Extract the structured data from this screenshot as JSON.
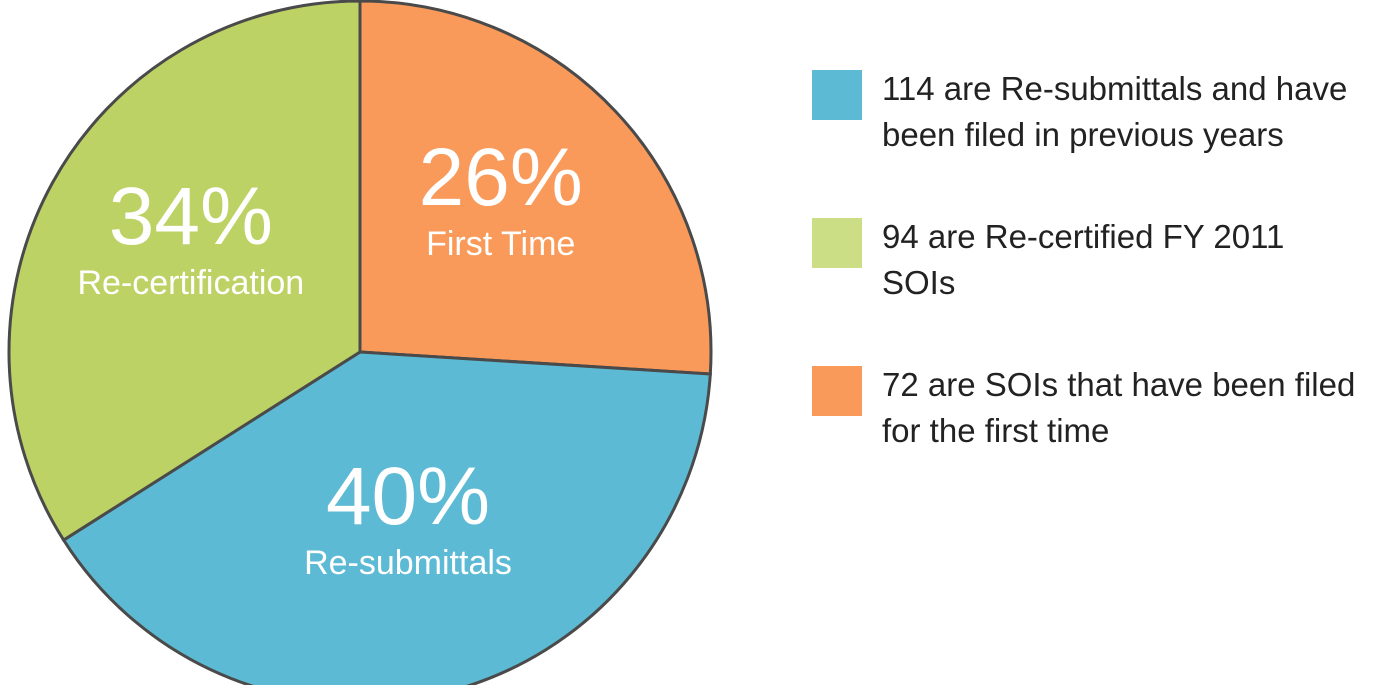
{
  "chart_data": {
    "type": "pie",
    "categories": [
      "First Time",
      "Re-submittals",
      "Re-certification"
    ],
    "values": [
      26,
      40,
      34
    ],
    "value_labels": [
      "26%",
      "40%",
      "34%"
    ],
    "colors": [
      "#f99a5a",
      "#5dbad4",
      "#bcd265"
    ],
    "legend": [
      {
        "text": "114 are Re-submittals and have been filed in previous years",
        "color": "#5dbad4"
      },
      {
        "text": "94 are Re-certified FY 2011 SOIs",
        "color": "#cbde86"
      },
      {
        "text": "72 are SOIs that have been filed for the first time",
        "color": "#f99a5a"
      }
    ]
  }
}
